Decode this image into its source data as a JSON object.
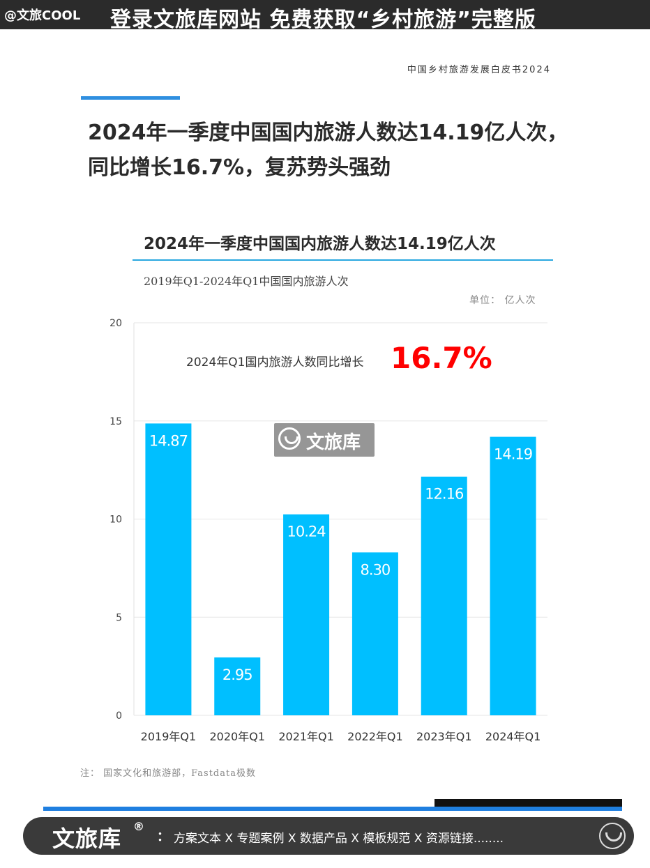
{
  "banner": {
    "handle": "@文旅COOL",
    "cta": "登录文旅库网站 免费获取“乡村旅游”完整版"
  },
  "document": {
    "book_title": "中国乡村旅游发展白皮书2024",
    "headline_line1": "2024年一季度中国国内旅游人数达14.19亿人次，",
    "headline_line2": "同比增长16.7%，复苏势头强劲",
    "source_note": "注： 国家文化和旅游部，Fastdata极数"
  },
  "watermark": {
    "text": "文旅库",
    "icon": "wenlvku-logo-icon"
  },
  "footer": {
    "brand": "文旅库",
    "reg_mark": "®",
    "colon": "：",
    "links": "方案文本 X 专题案例 X 数据产品 X 模板规范 X 资源链接........",
    "logo_icon": "wenlvku-logo-icon"
  },
  "colors": {
    "bar": "#00bfff",
    "accent_blue": "#2f8fe0",
    "highlight_red": "#ff0000",
    "banner_bg": "#2b2b2b"
  },
  "chart_data": {
    "type": "bar",
    "title": "2024年一季度中国国内旅游人数达14.19亿人次",
    "subtitle": "2019年Q1-2024年Q1中国国内旅游人次",
    "unit": "单位： 亿人次",
    "categories": [
      "2019年Q1",
      "2020年Q1",
      "2021年Q1",
      "2022年Q1",
      "2023年Q1",
      "2024年Q1"
    ],
    "values": [
      14.87,
      2.95,
      10.24,
      8.3,
      12.16,
      14.19
    ],
    "value_labels": [
      "14.87",
      "2.95",
      "10.24",
      "8.30",
      "12.16",
      "14.19"
    ],
    "ylim": [
      0,
      20
    ],
    "yticks": [
      0,
      5,
      10,
      15,
      20
    ],
    "grid": true,
    "annotation": {
      "text": "2024年Q1国内旅游人数同比增长",
      "highlight": "16.7%"
    }
  }
}
